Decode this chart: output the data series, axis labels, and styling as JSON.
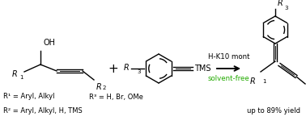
{
  "background_color": "#ffffff",
  "green_color": "#22aa00",
  "black_color": "#000000",
  "reagent_line1": "H-K10 mont",
  "reagent_line2": "solvent-free",
  "yield_text": "up to 89% yield",
  "r1_def": "R¹ = Aryl, Alkyl",
  "r3_def": "R³ = H, Br, OMe",
  "r2_def": "R² = Aryl, Alkyl, H, TMS",
  "figsize": [
    3.78,
    1.55
  ],
  "dpi": 100,
  "xlim": [
    0,
    378
  ],
  "ylim": [
    0,
    155
  ]
}
